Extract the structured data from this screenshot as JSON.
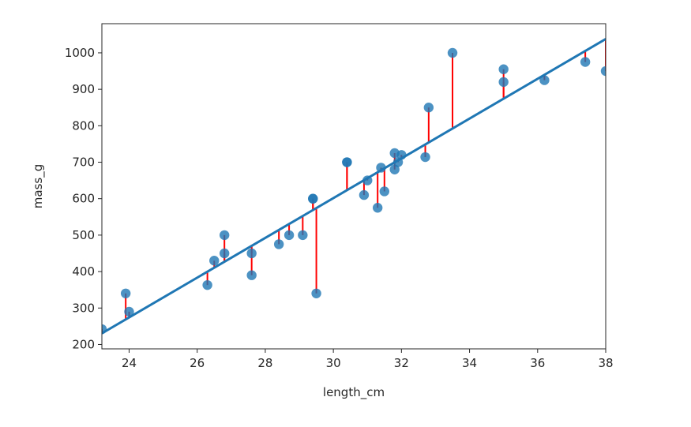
{
  "chart_data": {
    "type": "scatter",
    "title": "",
    "xlabel": "length_cm",
    "ylabel": "mass_g",
    "xlim": [
      23.2,
      38.0
    ],
    "ylim": [
      188,
      1080
    ],
    "grid": false,
    "xticks": [
      24,
      26,
      28,
      30,
      32,
      34,
      36,
      38
    ],
    "yticks": [
      200,
      300,
      400,
      500,
      600,
      700,
      800,
      900,
      1000
    ],
    "regression_line": {
      "intercept": -1035,
      "slope": 54.55
    },
    "points": [
      {
        "x": 23.2,
        "y": 242
      },
      {
        "x": 23.9,
        "y": 340
      },
      {
        "x": 24.0,
        "y": 290
      },
      {
        "x": 26.3,
        "y": 363
      },
      {
        "x": 26.5,
        "y": 430
      },
      {
        "x": 26.8,
        "y": 450
      },
      {
        "x": 26.8,
        "y": 500
      },
      {
        "x": 27.6,
        "y": 390
      },
      {
        "x": 27.6,
        "y": 450
      },
      {
        "x": 28.4,
        "y": 475
      },
      {
        "x": 28.7,
        "y": 500
      },
      {
        "x": 29.1,
        "y": 500
      },
      {
        "x": 29.4,
        "y": 600
      },
      {
        "x": 29.4,
        "y": 600
      },
      {
        "x": 29.5,
        "y": 340
      },
      {
        "x": 30.4,
        "y": 700
      },
      {
        "x": 30.4,
        "y": 700
      },
      {
        "x": 30.9,
        "y": 610
      },
      {
        "x": 31.0,
        "y": 650
      },
      {
        "x": 31.3,
        "y": 575
      },
      {
        "x": 31.4,
        "y": 685
      },
      {
        "x": 31.5,
        "y": 620
      },
      {
        "x": 31.8,
        "y": 680
      },
      {
        "x": 31.8,
        "y": 725
      },
      {
        "x": 31.9,
        "y": 700
      },
      {
        "x": 32.0,
        "y": 720
      },
      {
        "x": 32.7,
        "y": 714
      },
      {
        "x": 32.8,
        "y": 850
      },
      {
        "x": 33.5,
        "y": 1000
      },
      {
        "x": 35.0,
        "y": 920
      },
      {
        "x": 35.0,
        "y": 955
      },
      {
        "x": 36.2,
        "y": 925
      },
      {
        "x": 37.4,
        "y": 975
      },
      {
        "x": 38.0,
        "y": 950
      }
    ],
    "colors": {
      "points": "#1f77b4",
      "line": "#1f77b4",
      "residuals": "#ff0000",
      "axes": "#262626"
    }
  }
}
